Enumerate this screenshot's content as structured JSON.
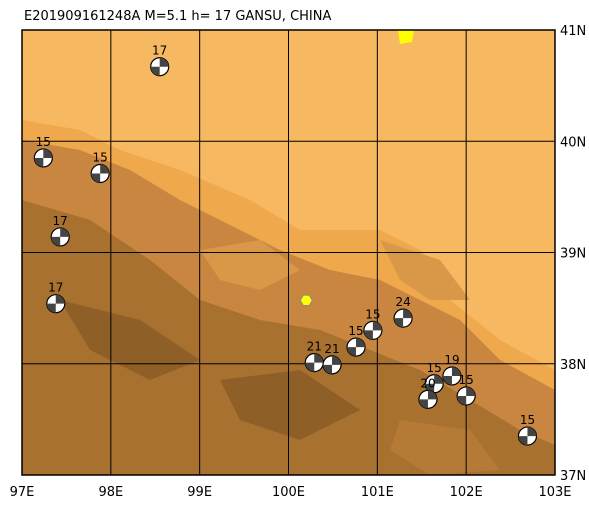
{
  "title": "E201909161248A M=5.1 h= 17 GANSU, CHINA",
  "xlim": [
    97,
    103
  ],
  "ylim": [
    37,
    41
  ],
  "xticks": [
    {
      "value": 97,
      "label": "97E"
    },
    {
      "value": 98,
      "label": "98E"
    },
    {
      "value": 99,
      "label": "99E"
    },
    {
      "value": 100,
      "label": "100E"
    },
    {
      "value": 101,
      "label": "101E"
    },
    {
      "value": 102,
      "label": "102E"
    },
    {
      "value": 103,
      "label": "103E"
    }
  ],
  "yticks": [
    {
      "value": 37,
      "label": "37N"
    },
    {
      "value": 38,
      "label": "38N"
    },
    {
      "value": 39,
      "label": "39N"
    },
    {
      "value": 40,
      "label": "40N"
    },
    {
      "value": 41,
      "label": "41N"
    }
  ],
  "epicenter": {
    "lon": 100.2,
    "lat": 38.57
  },
  "events": [
    {
      "label": "17",
      "lon": 98.55,
      "lat": 40.67
    },
    {
      "label": "15",
      "lon": 97.24,
      "lat": 39.85
    },
    {
      "label": "15",
      "lon": 97.88,
      "lat": 39.71
    },
    {
      "label": "17",
      "lon": 97.43,
      "lat": 39.14
    },
    {
      "label": "17",
      "lon": 97.38,
      "lat": 38.54
    },
    {
      "label": "24",
      "lon": 101.29,
      "lat": 38.41
    },
    {
      "label": "15",
      "lon": 100.95,
      "lat": 38.3
    },
    {
      "label": "15",
      "lon": 100.76,
      "lat": 38.15
    },
    {
      "label": "21",
      "lon": 100.29,
      "lat": 38.01
    },
    {
      "label": "21",
      "lon": 100.49,
      "lat": 37.99
    },
    {
      "label": "19",
      "lon": 101.84,
      "lat": 37.89
    },
    {
      "label": "15",
      "lon": 101.64,
      "lat": 37.82
    },
    {
      "label": "15",
      "lon": 102.0,
      "lat": 37.71
    },
    {
      "label": "20",
      "lon": 101.57,
      "lat": 37.68
    },
    {
      "label": "15",
      "lon": 102.69,
      "lat": 37.35
    }
  ]
}
